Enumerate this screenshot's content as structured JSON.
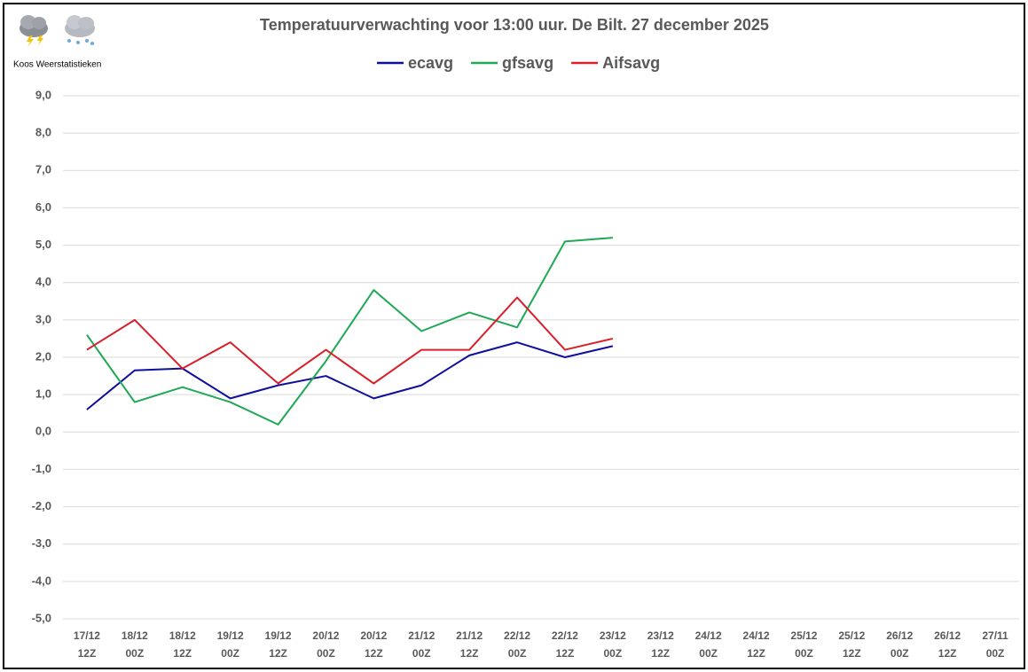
{
  "chart_data": {
    "type": "line",
    "title": "Temperatuurverwachting voor 13:00 uur. De Bilt. 27 december 2025",
    "brand": "Koos Weerstatistieken",
    "categories": [
      "17/12\n12Z",
      "18/12\n00Z",
      "18/12\n12Z",
      "19/12\n00Z",
      "19/12\n12Z",
      "20/12\n00Z",
      "20/12\n12Z",
      "21/12\n00Z",
      "21/12\n12Z",
      "22/12\n00Z",
      "22/12\n12Z",
      "23/12\n00Z",
      "23/12\n12Z",
      "24/12\n00Z",
      "24/12\n12Z",
      "25/12\n00Z",
      "25/12\n12Z",
      "26/12\n00Z",
      "26/12\n12Z",
      "27/11\n00Z"
    ],
    "series": [
      {
        "name": "ecavg",
        "color": "#0f0f9e",
        "values": [
          0.6,
          1.65,
          1.7,
          0.9,
          1.25,
          1.5,
          0.9,
          1.25,
          2.05,
          2.4,
          2.0,
          2.3,
          null,
          null,
          null,
          null,
          null,
          null,
          null,
          null
        ]
      },
      {
        "name": "gfsavg",
        "color": "#1fa855",
        "values": [
          2.6,
          0.8,
          1.2,
          0.8,
          0.2,
          1.9,
          3.8,
          2.7,
          3.2,
          2.8,
          5.1,
          5.2,
          null,
          null,
          null,
          null,
          null,
          null,
          null,
          null
        ]
      },
      {
        "name": "Aifsavg",
        "color": "#d9202a",
        "values": [
          2.2,
          3.0,
          1.7,
          2.4,
          1.3,
          2.2,
          1.3,
          2.2,
          2.2,
          3.6,
          2.2,
          2.5,
          null,
          null,
          null,
          null,
          null,
          null,
          null,
          null
        ]
      }
    ],
    "ylim": [
      -5,
      9
    ],
    "yticks": [
      {
        "value": -5,
        "label": "-5,0"
      },
      {
        "value": -4,
        "label": "-4,0"
      },
      {
        "value": -3,
        "label": "-3,0"
      },
      {
        "value": -2,
        "label": "-2,0"
      },
      {
        "value": -1,
        "label": "-1,0"
      },
      {
        "value": 0,
        "label": "0,0"
      },
      {
        "value": 1,
        "label": "1,0"
      },
      {
        "value": 2,
        "label": "2,0"
      },
      {
        "value": 3,
        "label": "3,0"
      },
      {
        "value": 4,
        "label": "4,0"
      },
      {
        "value": 5,
        "label": "5,0"
      },
      {
        "value": 6,
        "label": "6,0"
      },
      {
        "value": 7,
        "label": "7,0"
      },
      {
        "value": 8,
        "label": "8,0"
      },
      {
        "value": 9,
        "label": "9,0"
      }
    ],
    "grid": true
  }
}
